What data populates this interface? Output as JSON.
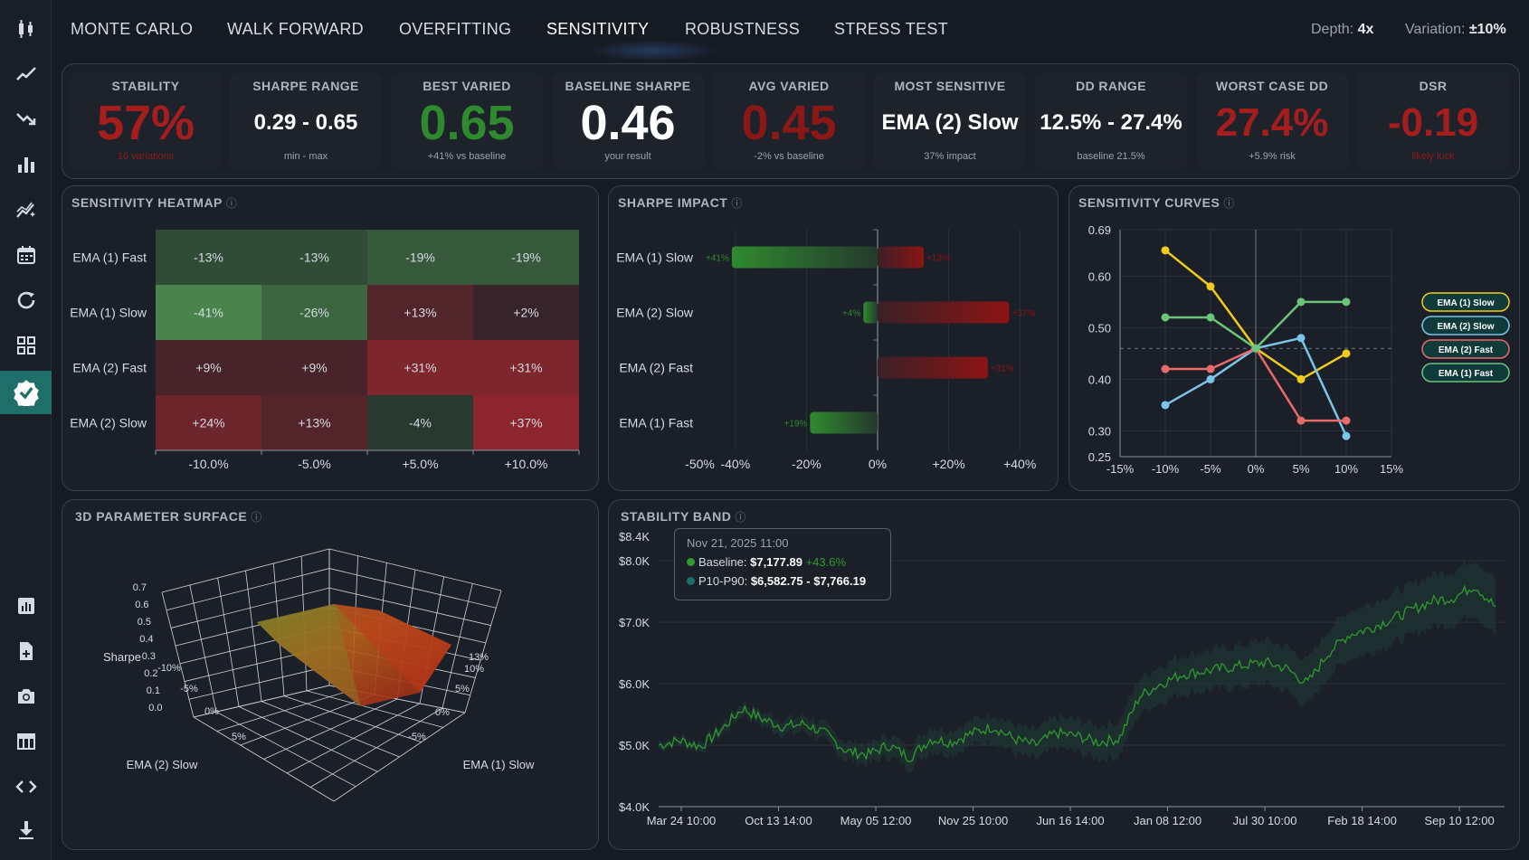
{
  "nav": {
    "tabs": [
      {
        "label": "MONTE CARLO"
      },
      {
        "label": "WALK FORWARD"
      },
      {
        "label": "OVERFITTING"
      },
      {
        "label": "SENSITIVITY"
      },
      {
        "label": "ROBUSTNESS"
      },
      {
        "label": "STRESS TEST"
      }
    ],
    "active_tab": "SENSITIVITY",
    "depth_label": "Depth:",
    "depth_value": "4x",
    "variation_label": "Variation:",
    "variation_value": "±10%"
  },
  "sidebar": {
    "top_icons": [
      "candlestick-icon",
      "line-chart-icon",
      "trend-down-icon",
      "bar-chart-icon",
      "sparkle-chart-icon",
      "calendar-icon",
      "refresh-icon",
      "grid-icon",
      "verified-badge-icon"
    ],
    "bottom_icons": [
      "report-icon",
      "add-file-icon",
      "camera-icon",
      "table-icon",
      "code-icon",
      "download-icon"
    ],
    "active_icon": "verified-badge-icon"
  },
  "metrics": [
    {
      "label": "STABILITY",
      "value": "57%",
      "sub": "16 variations",
      "color": "#a51d1d"
    },
    {
      "label": "SHARPE RANGE",
      "value": "0.29 - 0.65",
      "sub": "min - max",
      "color": "#ffffff"
    },
    {
      "label": "BEST VARIED",
      "value": "0.65",
      "sub": "+41% vs baseline",
      "color": "#2f8a2f"
    },
    {
      "label": "BASELINE SHARPE",
      "value": "0.46",
      "sub": "your result",
      "color": "#ffffff"
    },
    {
      "label": "AVG VARIED",
      "value": "0.45",
      "sub": "-2% vs baseline",
      "color": "#8c1717"
    },
    {
      "label": "MOST SENSITIVE",
      "value": "EMA (2) Slow",
      "sub": "37% impact",
      "color": "#ffffff"
    },
    {
      "label": "DD RANGE",
      "value": "12.5% - 27.4%",
      "sub": "baseline 21.5%",
      "color": "#ffffff"
    },
    {
      "label": "WORST CASE DD",
      "value": "27.4%",
      "sub": "+5.9% risk",
      "color": "#a51d1d"
    },
    {
      "label": "DSR",
      "value": "-0.19",
      "sub": "likely luck",
      "color": "#a51d1d"
    }
  ],
  "heatmap": {
    "title": "SENSITIVITY HEATMAP",
    "info": "ⓘ",
    "rows": [
      "EMA (1) Fast",
      "EMA (1) Slow",
      "EMA (2) Fast",
      "EMA (2) Slow"
    ],
    "cols": [
      "-10.0%",
      "-5.0%",
      "+5.0%",
      "+10.0%"
    ],
    "values": [
      [
        "-13%",
        "-13%",
        "-19%",
        "-19%"
      ],
      [
        "-41%",
        "-26%",
        "+13%",
        "+2%"
      ],
      [
        "+9%",
        "+9%",
        "+31%",
        "+31%"
      ],
      [
        "+24%",
        "+13%",
        "-4%",
        "+37%"
      ]
    ]
  },
  "impact": {
    "title": "SHARPE IMPACT",
    "info": "ⓘ",
    "rows": [
      {
        "label": "EMA (1) Slow",
        "neg": -41,
        "neg_label": "+41%",
        "pos": 13,
        "pos_label": "+13%"
      },
      {
        "label": "EMA (2) Slow",
        "neg": -4,
        "neg_label": "+4%",
        "pos": 37,
        "pos_label": "+37%"
      },
      {
        "label": "EMA (2) Fast",
        "neg": 0,
        "neg_label": "",
        "pos": 31,
        "pos_label": "+31%"
      },
      {
        "label": "EMA (1) Fast",
        "neg": -19,
        "neg_label": "+19%",
        "pos": 0,
        "pos_label": ""
      }
    ],
    "ticks": [
      "-50%",
      "-40%",
      "-20%",
      "0%",
      "+20%",
      "+40%"
    ]
  },
  "curves": {
    "title": "SENSITIVITY CURVES",
    "info": "ⓘ",
    "chart_data": {
      "type": "line",
      "x": [
        -10,
        -5,
        0,
        5,
        10
      ],
      "xlim": [
        -15,
        15
      ],
      "ylim": [
        0.25,
        0.69
      ],
      "xticks": [
        "-15%",
        "-10%",
        "-5%",
        "0%",
        "5%",
        "10%",
        "15%"
      ],
      "yticks": [
        "0.69",
        "0.60",
        "0.50",
        "0.40",
        "0.30",
        "0.25"
      ],
      "baseline": 0.46,
      "series": [
        {
          "name": "EMA (1) Slow",
          "color": "#f2cc1c",
          "values": [
            0.65,
            0.58,
            0.46,
            0.4,
            0.45
          ]
        },
        {
          "name": "EMA (2) Slow",
          "color": "#7cc4e8",
          "values": [
            0.35,
            0.4,
            0.46,
            0.48,
            0.29
          ]
        },
        {
          "name": "EMA (2) Fast",
          "color": "#e86a6a",
          "values": [
            0.42,
            0.42,
            0.46,
            0.32,
            0.32
          ]
        },
        {
          "name": "EMA (1) Fast",
          "color": "#6bc47a",
          "values": [
            0.52,
            0.52,
            0.46,
            0.55,
            0.55
          ]
        }
      ],
      "legend": "right"
    }
  },
  "surface": {
    "title": "3D PARAMETER SURFACE",
    "info": "ⓘ",
    "z_label": "Sharpe",
    "z_ticks": [
      "0.7",
      "0.6",
      "0.5",
      "0.4",
      "0.3",
      "0.2",
      "0.1",
      "0.0"
    ],
    "x_label": "EMA (2) Slow",
    "x_ticks": [
      "-10%",
      "-5%",
      "0%",
      "5%"
    ],
    "y_label": "EMA (1) Slow",
    "y_ticks": [
      "13%",
      "10%",
      "5%",
      "0%",
      "-5%"
    ]
  },
  "band": {
    "title": "STABILITY BAND",
    "info": "ⓘ",
    "tooltip": {
      "date": "Nov 21, 2025 11:00",
      "baseline_label": "Baseline:",
      "baseline_value": "$7,177.89",
      "baseline_change": "+43.6%",
      "range_label": "P10-P90:",
      "range_value": "$6,582.75 - $7,766.19"
    },
    "chart_data": {
      "type": "area",
      "ylim": [
        4000,
        8400
      ],
      "yticks": [
        "$8.4K",
        "$8.0K",
        "$7.0K",
        "$6.0K",
        "$5.0K",
        "$4.0K"
      ],
      "xticks": [
        "Mar 24 10:00",
        "Oct 13 14:00",
        "May 05 12:00",
        "Nov 25 10:00",
        "Jun 16 14:00",
        "Jan 08 12:00",
        "Jul 30 10:00",
        "Feb 18 14:00",
        "Sep 10 12:00"
      ],
      "series": [
        {
          "name": "Baseline",
          "color": "#2f9a2f",
          "values": [
            5000,
            5080,
            4980,
            5250,
            5600,
            5420,
            5300,
            5350,
            5180,
            4900,
            4850,
            5000,
            4800,
            5100,
            5050,
            5200,
            5300,
            5100,
            5000,
            5200,
            5150,
            5050,
            5100,
            5800,
            6000,
            6150,
            6200,
            6250,
            6300,
            6350,
            6250,
            6000,
            6500,
            6800,
            6900,
            7050,
            7200,
            7350,
            7400,
            7600,
            7250
          ]
        },
        {
          "name": "P10-P90",
          "color": "#1f3a34"
        }
      ]
    }
  }
}
